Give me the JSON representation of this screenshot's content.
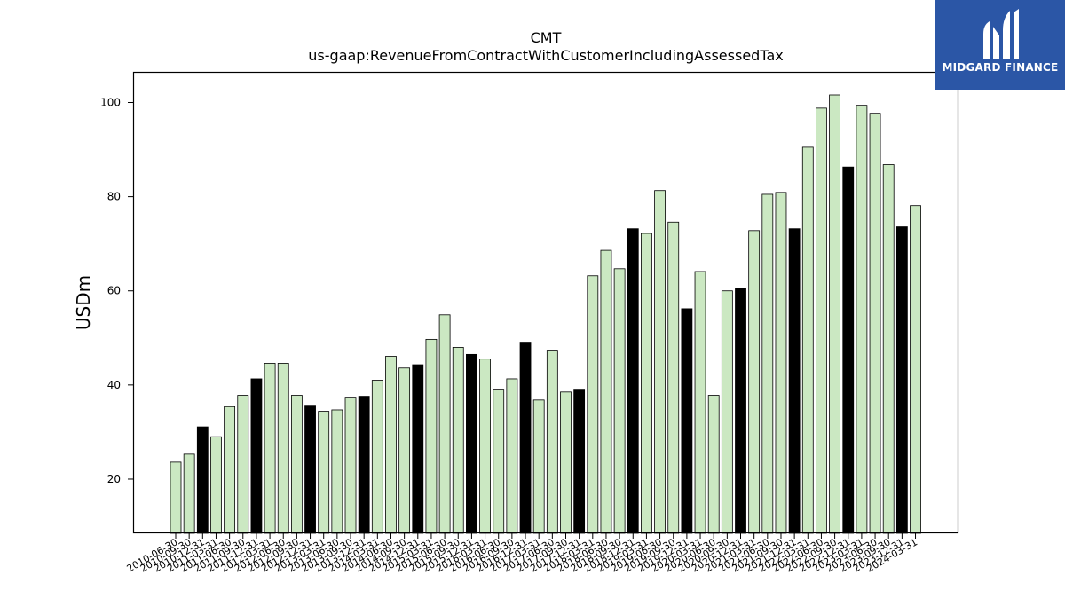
{
  "logo": {
    "text": "MIDGARD FINANCE",
    "mark_icon": "midgard-m-logo-icon",
    "background": "#2b56a6"
  },
  "colors": {
    "bar_default": "#cbe8c2",
    "bar_highlight": "#000000",
    "bar_edge": "#000000"
  },
  "chart_data": {
    "type": "bar",
    "title": "CMT",
    "subtitle": "us-gaap:RevenueFromContractWithCustomerIncludingAssessedTax",
    "xlabel": "",
    "ylabel": "USDm",
    "ylim": [
      8.5,
      106.5
    ],
    "yticks": [
      20,
      40,
      60,
      80,
      100
    ],
    "grid": false,
    "categories": [
      "2010-06-30",
      "2010-09-30",
      "2010-12-31",
      "2011-03-31",
      "2011-06-30",
      "2011-09-30",
      "2011-12-31",
      "2012-03-31",
      "2012-06-30",
      "2012-09-30",
      "2012-12-31",
      "2013-03-31",
      "2013-06-30",
      "2013-09-30",
      "2013-12-31",
      "2014-03-31",
      "2014-06-30",
      "2014-09-30",
      "2014-12-31",
      "2015-03-31",
      "2015-06-30",
      "2015-09-30",
      "2015-12-31",
      "2016-03-31",
      "2016-06-30",
      "2016-09-30",
      "2016-12-31",
      "2017-03-31",
      "2017-06-30",
      "2017-09-30",
      "2017-12-31",
      "2018-03-31",
      "2018-06-30",
      "2018-09-30",
      "2018-12-31",
      "2019-03-31",
      "2019-06-30",
      "2019-09-30",
      "2019-12-31",
      "2020-03-31",
      "2020-06-30",
      "2020-09-30",
      "2020-12-31",
      "2021-03-31",
      "2021-06-30",
      "2021-09-30",
      "2021-12-31",
      "2022-03-31",
      "2022-06-30",
      "2022-09-30",
      "2022-12-31",
      "2023-03-31",
      "2023-06-30",
      "2023-09-30",
      "2023-12-31",
      "2024-03-31"
    ],
    "values": [
      23.6,
      25.3,
      31.1,
      29.0,
      35.4,
      37.8,
      41.3,
      44.6,
      44.6,
      37.8,
      35.7,
      34.4,
      34.7,
      37.4,
      37.6,
      41.0,
      46.1,
      43.6,
      44.3,
      49.7,
      54.9,
      48.0,
      46.5,
      45.5,
      39.1,
      41.3,
      49.1,
      36.8,
      47.4,
      38.5,
      39.1,
      63.2,
      68.6,
      64.7,
      73.2,
      72.2,
      81.3,
      74.6,
      56.2,
      64.1,
      37.8,
      60.0,
      60.6,
      72.8,
      80.5,
      80.9,
      73.2,
      90.5,
      98.8,
      101.6,
      86.3,
      99.4,
      97.7,
      86.8,
      73.6,
      78.1
    ],
    "highlight": [
      false,
      false,
      true,
      false,
      false,
      false,
      true,
      false,
      false,
      false,
      true,
      false,
      false,
      false,
      true,
      false,
      false,
      false,
      true,
      false,
      false,
      false,
      true,
      false,
      false,
      false,
      true,
      false,
      false,
      false,
      true,
      false,
      false,
      false,
      true,
      false,
      false,
      false,
      true,
      false,
      false,
      false,
      true,
      false,
      false,
      false,
      true,
      false,
      false,
      false,
      true,
      false,
      false,
      false,
      true,
      false
    ]
  }
}
